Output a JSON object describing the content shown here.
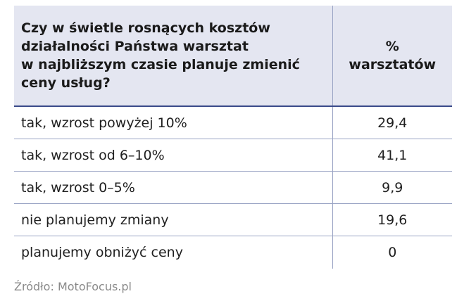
{
  "table": {
    "header": {
      "question_lines": [
        "Czy w świetle rosnących kosztów",
        "działalności Państwa warsztat",
        "w najbliższym czasie planuje zmienić",
        "ceny usług?"
      ],
      "percent_lines": [
        "%",
        "warsztatów"
      ]
    },
    "rows": [
      {
        "label": "tak, wzrost powyżej 10%",
        "value": "29,4"
      },
      {
        "label": "tak, wzrost od 6–10%",
        "value": "41,1"
      },
      {
        "label": "tak, wzrost 0–5%",
        "value": "9,9"
      },
      {
        "label": "nie planujemy zmiany",
        "value": "19,6"
      },
      {
        "label": "planujemy obniżyć ceny",
        "value": "0"
      }
    ],
    "colors": {
      "header_bg": "#e4e6f1",
      "header_rule": "#3a4a8a",
      "row_rule": "#9aa4c4",
      "source_text": "#8a8a8a"
    }
  },
  "source": "Źródło: MotoFocus.pl"
}
